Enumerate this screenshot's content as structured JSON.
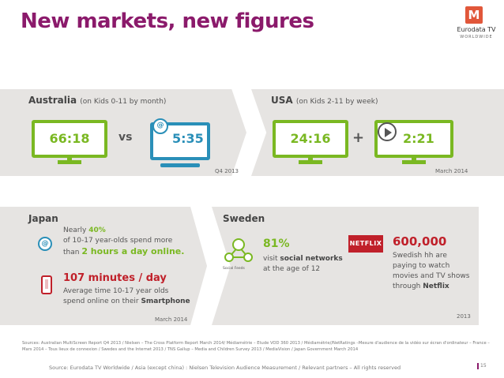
{
  "title": "New markets, new figures",
  "logo": {
    "mark": "M",
    "name": "Eurodata TV",
    "sub": "WORLDWIDE"
  },
  "australia": {
    "label": "Australia",
    "sub": "(on Kids 0-11 by month)",
    "tv_value": "66:18",
    "vs": "vs",
    "online_value": "5:35",
    "date": "Q4 2013"
  },
  "usa": {
    "label": "USA",
    "sub": "(on Kids 2-11 by week)",
    "tv_value": "24:16",
    "plus": "+",
    "online_value": "2:21",
    "date": "March 2014"
  },
  "japan": {
    "label": "Japan",
    "stat1_prefix": "Nearly ",
    "stat1_pct": "40%",
    "stat1_line2": "of 10-17 year-olds spend more",
    "stat1_line3_prefix": "than ",
    "stat1_highlight": "2 hours a day online.",
    "stat2_headline": "107 minutes / day",
    "stat2_line1": "Average time 10-17 year olds",
    "stat2_line2_prefix": "spend online on their ",
    "stat2_highlight": "Smartphone",
    "date": "March 2014"
  },
  "sweden": {
    "label": "Sweden",
    "social_icon_caption": "Social Feeds",
    "stat1_value": "81%",
    "stat1_line1_prefix": "visit ",
    "stat1_highlight": "social networks",
    "stat1_line2": "at the age of 12",
    "netflix_logo": "NETFLIX",
    "stat2_value": "600,000",
    "stat2_line1": "Swedish hh are",
    "stat2_line2": "paying to watch",
    "stat2_line3": "movies and TV shows",
    "stat2_line4_prefix": "through ",
    "stat2_highlight": "Netflix",
    "date": "2013"
  },
  "sources_text": "Sources: Australian MultiScreen Report Q4 2013 / Nielsen – The Cross Platform Report March 2014/ Médiamétrie – Etude VOD 360 2013 / Médiamétrie//NetRatings –Mesure d'audience de la vidéo sur écran d'ordinateur – France – Mars 2014 – Tous lieux de connexion / Swedes and the Internet 2013 / TNS Gallup – Media and Children Survey 2013 / MediaVision / Japan Government March 2014",
  "source_line": "Source: Eurodata TV Worldwide / Asia (except china) : Nielsen Television Audience Measurement / Relevant partners – All rights reserved",
  "page_number": "15",
  "colors": {
    "purple": "#8b1a6b",
    "green": "#7ab822",
    "blue": "#2a8fb8",
    "red": "#c0202a",
    "panel": "#e6e4e2"
  }
}
